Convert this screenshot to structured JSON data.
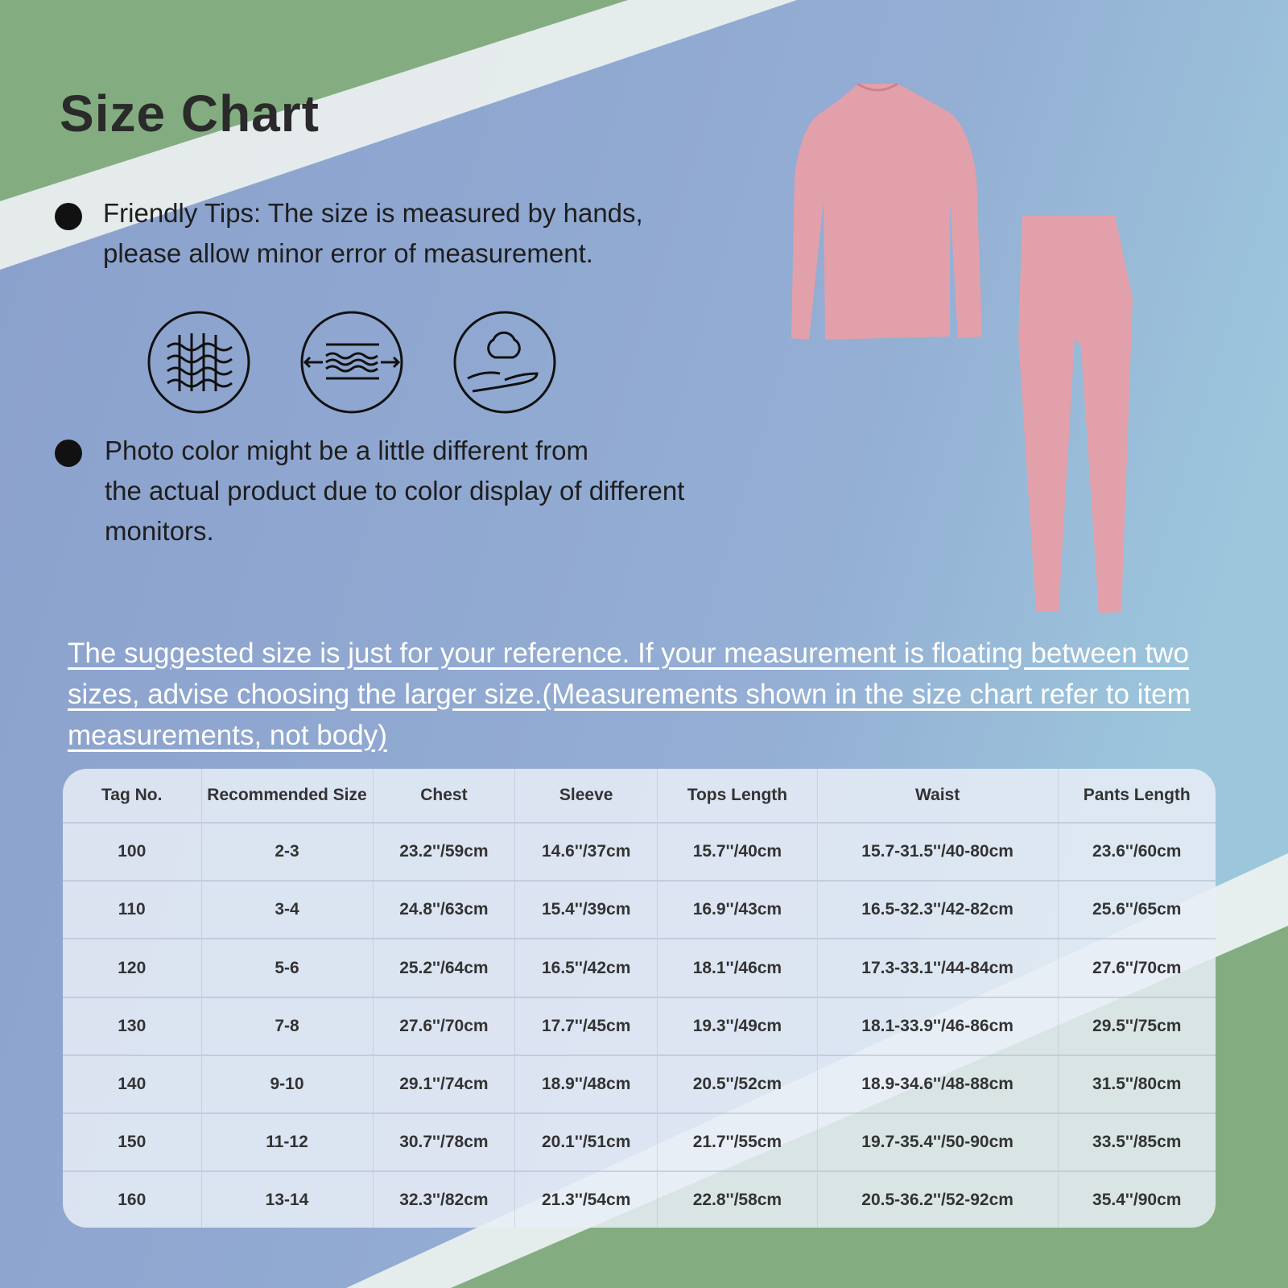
{
  "title": "Size Chart",
  "tips": [
    "Friendly Tips: The size is measured by hands, please allow minor error of measurement.",
    "Photo color might be a little different from the actual product due to color display of different monitors."
  ],
  "tip_lines": {
    "tip1": [
      "Friendly Tips: The size is measured by hands,",
      "please allow minor error of measurement."
    ],
    "tip2": [
      "Photo color might be a little different from",
      "the actual product due to color display of different",
      "monitors."
    ]
  },
  "feature_icons": [
    "knit-fabric-icon",
    "stretch-icon",
    "cotton-soft-hand-icon"
  ],
  "note": "The suggested size is just for your reference. If your measurement is floating between two sizes, advise choosing the larger size.(Measurements shown in the size chart refer to item measurements, not body)",
  "colors": {
    "background_blue": "#8fa5cd",
    "corner_green": "#7fa77a",
    "garment_pink": "#e2a0aa",
    "note_text": "#ffffff"
  },
  "table": {
    "headers": [
      "Tag No.",
      "Recommended Size",
      "Chest",
      "Sleeve",
      "Tops Length",
      "Waist",
      "Pants Length"
    ],
    "rows": [
      [
        "100",
        "2-3",
        "23.2''/59cm",
        "14.6''/37cm",
        "15.7''/40cm",
        "15.7-31.5''/40-80cm",
        "23.6''/60cm"
      ],
      [
        "110",
        "3-4",
        "24.8''/63cm",
        "15.4''/39cm",
        "16.9''/43cm",
        "16.5-32.3''/42-82cm",
        "25.6''/65cm"
      ],
      [
        "120",
        "5-6",
        "25.2''/64cm",
        "16.5''/42cm",
        "18.1''/46cm",
        "17.3-33.1''/44-84cm",
        "27.6''/70cm"
      ],
      [
        "130",
        "7-8",
        "27.6''/70cm",
        "17.7''/45cm",
        "19.3''/49cm",
        "18.1-33.9''/46-86cm",
        "29.5''/75cm"
      ],
      [
        "140",
        "9-10",
        "29.1''/74cm",
        "18.9''/48cm",
        "20.5''/52cm",
        "18.9-34.6''/48-88cm",
        "31.5''/80cm"
      ],
      [
        "150",
        "11-12",
        "30.7''/78cm",
        "20.1''/51cm",
        "21.7''/55cm",
        "19.7-35.4''/50-90cm",
        "33.5''/85cm"
      ],
      [
        "160",
        "13-14",
        "32.3''/82cm",
        "21.3''/54cm",
        "22.8''/58cm",
        "20.5-36.2''/52-92cm",
        "35.4''/90cm"
      ]
    ]
  }
}
